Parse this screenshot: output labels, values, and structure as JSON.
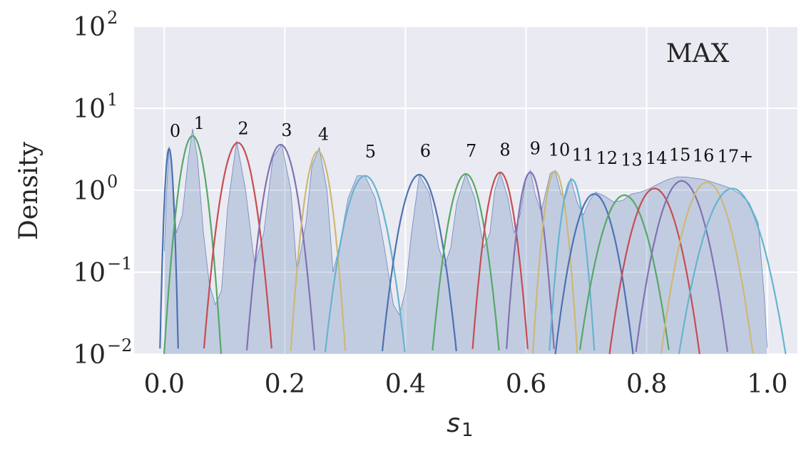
{
  "chart_data": {
    "type": "area",
    "title": "",
    "annotation": "MAX",
    "xlabel": "s",
    "xlabel_sub": "1",
    "ylabel": "Density",
    "xlim": [
      -0.05,
      1.05
    ],
    "ylim": [
      0.01,
      100
    ],
    "yscale": "log",
    "x_ticks": [
      0.0,
      0.2,
      0.4,
      0.6,
      0.8,
      1.0
    ],
    "x_tick_labels": [
      "0.0",
      "0.2",
      "0.4",
      "0.6",
      "0.8",
      "1.0"
    ],
    "y_ticks": [
      0.01,
      0.1,
      1,
      10,
      100
    ],
    "y_tick_labels": [
      {
        "base": "10",
        "exp": "−2"
      },
      {
        "base": "10",
        "exp": "−1"
      },
      {
        "base": "10",
        "exp": "0"
      },
      {
        "base": "10",
        "exp": "1"
      },
      {
        "base": "10",
        "exp": "2"
      }
    ],
    "grid": true,
    "background": "#EAEAF2",
    "histogram": {
      "fill": "#4C72B0",
      "fill_opacity": 0.25,
      "line": "#4C72B0",
      "x": [
        0.0,
        0.004,
        0.008,
        0.012,
        0.02,
        0.03,
        0.04,
        0.047,
        0.055,
        0.065,
        0.075,
        0.085,
        0.095,
        0.105,
        0.12,
        0.135,
        0.15,
        0.165,
        0.18,
        0.195,
        0.21,
        0.22,
        0.235,
        0.245,
        0.257,
        0.27,
        0.28,
        0.29,
        0.305,
        0.32,
        0.333,
        0.35,
        0.365,
        0.38,
        0.39,
        0.4,
        0.41,
        0.423,
        0.44,
        0.455,
        0.465,
        0.475,
        0.485,
        0.5,
        0.515,
        0.53,
        0.54,
        0.548,
        0.557,
        0.57,
        0.58,
        0.59,
        0.6,
        0.607,
        0.615,
        0.625,
        0.632,
        0.64,
        0.648,
        0.658,
        0.665,
        0.674,
        0.685,
        0.695,
        0.705,
        0.715,
        0.73,
        0.745,
        0.76,
        0.775,
        0.79,
        0.805,
        0.82,
        0.835,
        0.85,
        0.865,
        0.88,
        0.895,
        0.91,
        0.925,
        0.94,
        0.955,
        0.97,
        0.985,
        0.995,
        1.0
      ],
      "y": [
        0.18,
        1.0,
        3.4,
        2.5,
        0.3,
        0.5,
        2.5,
        5.6,
        2.5,
        0.3,
        0.07,
        0.04,
        0.06,
        0.6,
        4.0,
        1.0,
        0.12,
        0.3,
        2.5,
        3.6,
        1.0,
        0.1,
        0.4,
        2.0,
        3.3,
        1.0,
        0.1,
        0.2,
        0.8,
        1.5,
        1.5,
        0.8,
        0.2,
        0.04,
        0.03,
        0.06,
        0.3,
        1.55,
        0.9,
        0.2,
        0.12,
        0.2,
        0.7,
        1.6,
        0.8,
        0.2,
        0.3,
        1.0,
        1.65,
        0.8,
        0.3,
        0.5,
        1.4,
        1.75,
        0.9,
        0.55,
        0.9,
        1.6,
        1.75,
        0.9,
        0.8,
        1.4,
        0.7,
        0.5,
        0.75,
        0.95,
        0.85,
        0.72,
        0.75,
        0.9,
        0.95,
        1.05,
        1.2,
        1.35,
        1.45,
        1.45,
        1.4,
        1.35,
        1.25,
        1.15,
        1.05,
        0.9,
        0.7,
        0.4,
        0.05,
        0.012
      ]
    },
    "series": [
      {
        "name": "0",
        "mu": 0.008,
        "sigma": 0.0045,
        "peak": 3.2,
        "color": "#4C72B0"
      },
      {
        "name": "1",
        "mu": 0.047,
        "sigma": 0.0135,
        "peak": 4.6,
        "color": "#55A868"
      },
      {
        "name": "2",
        "mu": 0.122,
        "sigma": 0.0165,
        "peak": 3.8,
        "color": "#C44E52"
      },
      {
        "name": "3",
        "mu": 0.193,
        "sigma": 0.0165,
        "peak": 3.6,
        "color": "#8172B2"
      },
      {
        "name": "4",
        "mu": 0.255,
        "sigma": 0.0135,
        "peak": 3.0,
        "color": "#CCB974"
      },
      {
        "name": "5",
        "mu": 0.333,
        "sigma": 0.021,
        "peak": 1.5,
        "color": "#64B5CD"
      },
      {
        "name": "6",
        "mu": 0.423,
        "sigma": 0.0195,
        "peak": 1.55,
        "color": "#4C72B0"
      },
      {
        "name": "7",
        "mu": 0.5,
        "sigma": 0.0175,
        "peak": 1.58,
        "color": "#55A868"
      },
      {
        "name": "8",
        "mu": 0.557,
        "sigma": 0.0145,
        "peak": 1.65,
        "color": "#C44E52"
      },
      {
        "name": "9",
        "mu": 0.607,
        "sigma": 0.0125,
        "peak": 1.65,
        "color": "#8172B2"
      },
      {
        "name": "10",
        "mu": 0.648,
        "sigma": 0.0115,
        "peak": 1.7,
        "color": "#CCB974"
      },
      {
        "name": "11",
        "mu": 0.676,
        "sigma": 0.012,
        "peak": 1.35,
        "color": "#64B5CD"
      },
      {
        "name": "12",
        "mu": 0.713,
        "sigma": 0.0215,
        "peak": 0.9,
        "color": "#4C72B0"
      },
      {
        "name": "13",
        "mu": 0.763,
        "sigma": 0.025,
        "peak": 0.87,
        "color": "#55A868"
      },
      {
        "name": "14",
        "mu": 0.813,
        "sigma": 0.0245,
        "peak": 1.05,
        "color": "#C44E52"
      },
      {
        "name": "15",
        "mu": 0.858,
        "sigma": 0.0245,
        "peak": 1.3,
        "color": "#8172B2"
      },
      {
        "name": "16",
        "mu": 0.9,
        "sigma": 0.0245,
        "peak": 1.25,
        "color": "#CCB974"
      },
      {
        "name": "17+",
        "mu": 0.942,
        "sigma": 0.029,
        "peak": 1.05,
        "color": "#64B5CD"
      }
    ],
    "peak_labels": [
      {
        "text": "0",
        "x": 0.018,
        "y": 4.5
      },
      {
        "text": "1",
        "x": 0.058,
        "y": 5.6
      },
      {
        "text": "2",
        "x": 0.131,
        "y": 4.8
      },
      {
        "text": "3",
        "x": 0.203,
        "y": 4.6
      },
      {
        "text": "4",
        "x": 0.264,
        "y": 4.1
      },
      {
        "text": "5",
        "x": 0.342,
        "y": 2.5
      },
      {
        "text": "6",
        "x": 0.433,
        "y": 2.55
      },
      {
        "text": "7",
        "x": 0.509,
        "y": 2.55
      },
      {
        "text": "8",
        "x": 0.565,
        "y": 2.65
      },
      {
        "text": "9",
        "x": 0.615,
        "y": 2.75
      },
      {
        "text": "10",
        "x": 0.655,
        "y": 2.65
      },
      {
        "text": "11",
        "x": 0.694,
        "y": 2.3
      },
      {
        "text": "12",
        "x": 0.734,
        "y": 2.1
      },
      {
        "text": "13",
        "x": 0.775,
        "y": 2.0
      },
      {
        "text": "14",
        "x": 0.816,
        "y": 2.1
      },
      {
        "text": "15",
        "x": 0.855,
        "y": 2.3
      },
      {
        "text": "16",
        "x": 0.894,
        "y": 2.25
      },
      {
        "text": "17+",
        "x": 0.947,
        "y": 2.2
      }
    ]
  }
}
